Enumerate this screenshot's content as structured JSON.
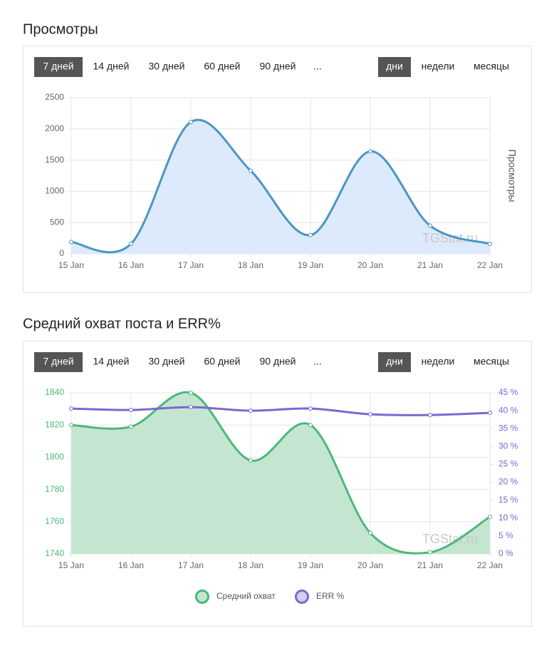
{
  "sections": [
    {
      "heading": "Просмотры",
      "periods": [
        "7 дней",
        "14 дней",
        "30 дней",
        "60 дней",
        "90 дней",
        "..."
      ],
      "units": [
        "дни",
        "недели",
        "месяцы"
      ]
    },
    {
      "heading": "Средний охват поста и ERR%",
      "periods": [
        "7 дней",
        "14 дней",
        "30 дней",
        "60 дней",
        "90 дней",
        "..."
      ],
      "units": [
        "дни",
        "недели",
        "месяцы"
      ]
    }
  ],
  "chart_data": [
    {
      "type": "line",
      "area": true,
      "categories": [
        "15 Jan",
        "16 Jan",
        "17 Jan",
        "18 Jan",
        "19 Jan",
        "20 Jan",
        "21 Jan",
        "22 Jan"
      ],
      "values": [
        190,
        160,
        2110,
        1330,
        300,
        1640,
        450,
        160
      ],
      "color": "#4a96c2",
      "fill": "#dceafc",
      "ylim": [
        0,
        2500
      ],
      "yticks": [
        0,
        500,
        1000,
        1500,
        2000,
        2500
      ],
      "y_label": "Просмотры",
      "watermark": "TGStat.ru",
      "grid": true
    },
    {
      "type": "line",
      "area": true,
      "categories": [
        "15 Jan",
        "16 Jan",
        "17 Jan",
        "18 Jan",
        "19 Jan",
        "20 Jan",
        "21 Jan",
        "22 Jan"
      ],
      "series": [
        {
          "name": "Средний охват",
          "color": "#4cb87a",
          "fill": "#c4e6d1",
          "values": [
            1820,
            1819,
            1840,
            1798,
            1820,
            1753,
            1741,
            1763
          ]
        },
        {
          "name": "ERR %",
          "color": "#7b68d0",
          "axis": "y2",
          "values": [
            40.6,
            40.2,
            41,
            40,
            40.6,
            39,
            38.8,
            39.4
          ]
        }
      ],
      "ylim": [
        1740,
        1840
      ],
      "yticks": [
        1740,
        1760,
        1780,
        1800,
        1820,
        1840
      ],
      "y2lim": [
        0,
        45
      ],
      "y2ticks": [
        {
          "value": 0,
          "label": "0 %"
        },
        {
          "value": 5,
          "label": "5 %"
        },
        {
          "value": 10,
          "label": "10 %"
        },
        {
          "value": 15,
          "label": "15 %"
        },
        {
          "value": 20,
          "label": "20 %"
        },
        {
          "value": 25,
          "label": "25 %"
        },
        {
          "value": 30,
          "label": "30 %"
        },
        {
          "value": 35,
          "label": "35 %"
        },
        {
          "value": 40,
          "label": "40 %"
        },
        {
          "value": 45,
          "label": "45 %"
        }
      ],
      "watermark": "TGStat.ru",
      "grid": true,
      "legend": "bottom"
    }
  ]
}
